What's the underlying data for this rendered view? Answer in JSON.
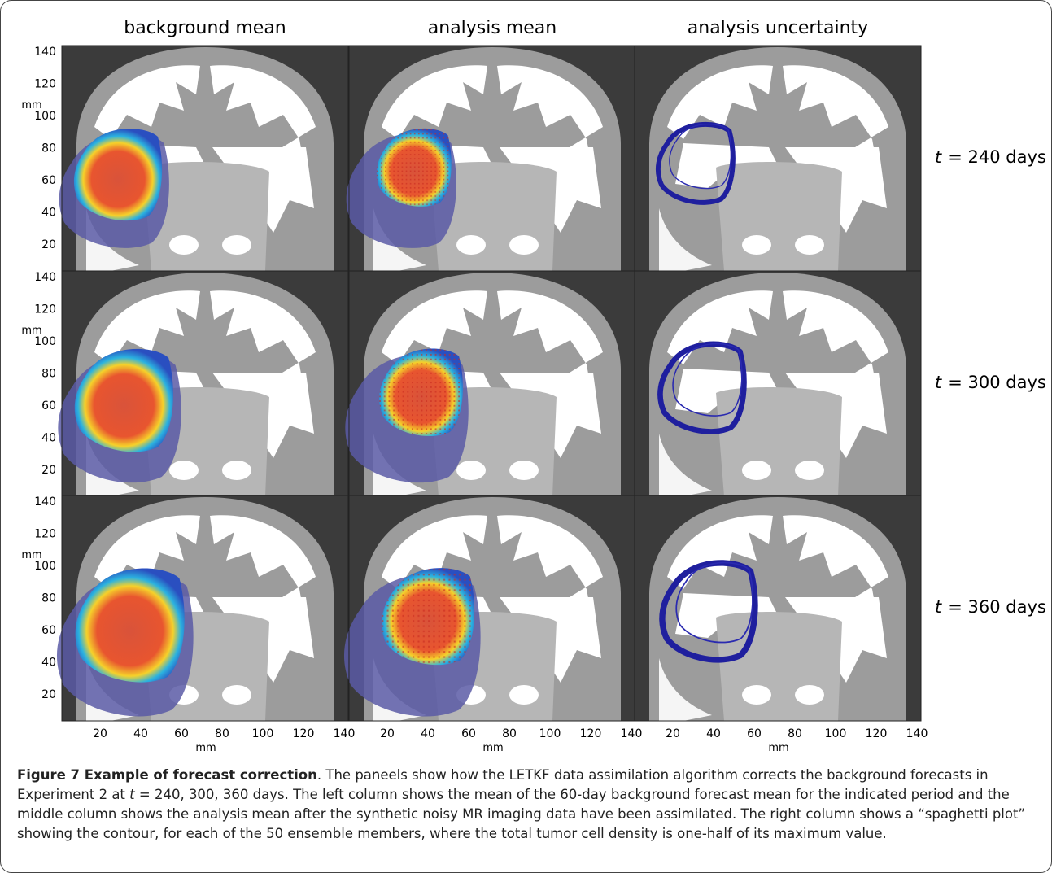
{
  "columns": [
    "background mean",
    "analysis mean",
    "analysis uncertainty"
  ],
  "rows": [
    {
      "symbol": "t",
      "text": "= 240 days"
    },
    {
      "symbol": "t",
      "text": "= 300 days"
    },
    {
      "symbol": "t",
      "text": "= 360 days"
    }
  ],
  "y_axis": {
    "label": "mm",
    "ticks": [
      140,
      120,
      100,
      80,
      60,
      40,
      20
    ]
  },
  "x_axis": {
    "label": "mm",
    "ticks": [
      20,
      40,
      60,
      80,
      100,
      120,
      140
    ]
  },
  "caption": {
    "title": "Figure 7 Example of forecast correction",
    "segments": [
      ". The paneels show how the LETKF data assimilation algorithm corrects the background forecasts in Experiment 2 at ",
      "t",
      " = 240, 300, 360 days. The left column shows the mean of the 60-day background forecast mean for the indicated period and the middle column shows the analysis mean after the synthetic noisy MR imaging data have been assimilated. The right column shows a “spaghetti plot” showing the contour, for each of the 50 ensemble members, where the total tumor cell density is one-half of its maximum value."
    ]
  }
}
